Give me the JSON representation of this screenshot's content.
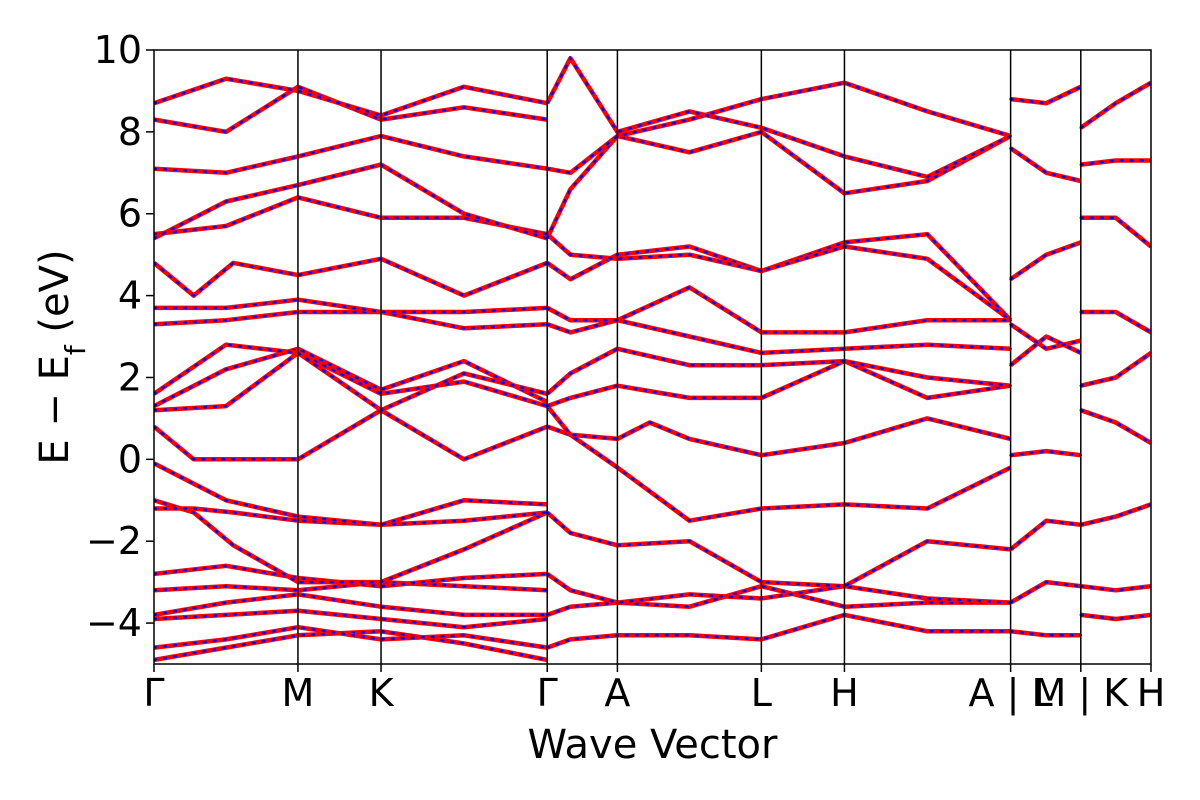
{
  "chart_data": {
    "type": "line",
    "title": "",
    "xlabel": "Wave Vector",
    "ylabel": {
      "main": "E − E",
      "sub": "f",
      "unit": " (eV)"
    },
    "ylim": [
      -5,
      10
    ],
    "yticks": [
      -4,
      -2,
      0,
      2,
      4,
      6,
      8,
      10
    ],
    "ytick_labels": [
      "−4",
      "−2",
      "0",
      "2",
      "4",
      "6",
      "8",
      "10"
    ],
    "kpath": [
      {
        "label": "Γ",
        "x": 0.0
      },
      {
        "label": "M",
        "x": 0.726
      },
      {
        "label": "K",
        "x": 1.145
      },
      {
        "label": "Γ",
        "x": 1.983
      },
      {
        "label": "A",
        "x": 2.337
      },
      {
        "label": "L",
        "x": 3.063
      },
      {
        "label": "H",
        "x": 3.482
      },
      {
        "label": "A | L",
        "x": 4.32
      },
      {
        "label": "M | K",
        "x": 4.674
      },
      {
        "label": "H",
        "x": 5.028
      }
    ],
    "xlim": [
      0.0,
      5.028
    ],
    "series_colors": {
      "reference": "#0000ff",
      "overlay": "#ff0000"
    },
    "bands": [
      {
        "x": [
          0,
          0.363,
          0.726,
          1.145,
          1.563,
          1.983
        ],
        "y": [
          -4.9,
          -4.6,
          -4.3,
          -4.2,
          -4.5,
          -4.9
        ]
      },
      {
        "x": [
          0,
          0.363,
          0.726,
          1.145,
          1.563,
          1.983
        ],
        "y": [
          -4.6,
          -4.4,
          -4.1,
          -4.4,
          -4.3,
          -4.6
        ]
      },
      {
        "x": [
          0,
          0.363,
          0.726,
          1.145,
          1.563,
          1.983
        ],
        "y": [
          -3.9,
          -3.8,
          -3.7,
          -3.9,
          -4.1,
          -3.9
        ]
      },
      {
        "x": [
          0,
          0.363,
          0.726,
          1.145,
          1.563,
          1.983
        ],
        "y": [
          -3.8,
          -3.5,
          -3.3,
          -3.6,
          -3.8,
          -3.8
        ]
      },
      {
        "x": [
          0,
          0.363,
          0.726,
          1.145,
          1.563,
          1.983
        ],
        "y": [
          -3.2,
          -3.1,
          -3.2,
          -3.0,
          -3.1,
          -3.2
        ]
      },
      {
        "x": [
          0,
          0.363,
          0.726,
          1.145,
          1.563,
          1.983
        ],
        "y": [
          -2.8,
          -2.6,
          -2.9,
          -3.1,
          -2.9,
          -2.8
        ]
      },
      {
        "x": [
          0,
          0.2,
          0.4,
          0.726,
          1.145,
          1.563,
          1.983
        ],
        "y": [
          -1.0,
          -1.3,
          -2.1,
          -3.0,
          -3.0,
          -2.2,
          -1.3
        ]
      },
      {
        "x": [
          0,
          0.2,
          0.4,
          0.726,
          1.145,
          1.563,
          1.983
        ],
        "y": [
          -1.2,
          -1.2,
          -1.3,
          -1.5,
          -1.6,
          -1.5,
          -1.3
        ]
      },
      {
        "x": [
          0,
          0.363,
          0.726,
          1.145,
          1.563,
          1.983
        ],
        "y": [
          -0.1,
          -1.0,
          -1.4,
          -1.6,
          -1.0,
          -1.1
        ]
      },
      {
        "x": [
          0,
          0.2,
          0.726,
          1.145,
          1.563,
          1.983
        ],
        "y": [
          0.8,
          0.0,
          0.0,
          1.2,
          0.0,
          0.8
        ]
      },
      {
        "x": [
          0,
          0.363,
          0.726,
          1.145,
          1.563,
          1.983
        ],
        "y": [
          1.2,
          1.3,
          2.6,
          1.6,
          1.9,
          1.3
        ]
      },
      {
        "x": [
          0,
          0.363,
          0.726,
          1.145,
          1.563,
          1.983
        ],
        "y": [
          1.3,
          2.2,
          2.7,
          1.7,
          2.4,
          1.4
        ]
      },
      {
        "x": [
          0,
          0.363,
          0.726,
          1.145,
          1.563,
          1.983
        ],
        "y": [
          1.6,
          2.8,
          2.6,
          1.2,
          2.1,
          1.6
        ]
      },
      {
        "x": [
          0,
          0.363,
          0.726,
          1.145,
          1.563,
          1.983
        ],
        "y": [
          3.3,
          3.4,
          3.6,
          3.6,
          3.2,
          3.3
        ]
      },
      {
        "x": [
          0,
          0.363,
          0.726,
          1.145,
          1.563,
          1.983
        ],
        "y": [
          3.7,
          3.7,
          3.9,
          3.6,
          3.6,
          3.7
        ]
      },
      {
        "x": [
          0,
          0.2,
          0.4,
          0.726,
          1.145,
          1.563,
          1.983
        ],
        "y": [
          4.8,
          4.0,
          4.8,
          4.5,
          4.9,
          4.0,
          4.8
        ]
      },
      {
        "x": [
          0,
          0.363,
          0.726,
          1.145,
          1.563,
          1.983
        ],
        "y": [
          5.5,
          5.7,
          6.4,
          5.9,
          5.9,
          5.5
        ]
      },
      {
        "x": [
          0,
          0.363,
          0.726,
          1.145,
          1.563,
          1.983
        ],
        "y": [
          5.4,
          6.3,
          6.7,
          7.2,
          6.0,
          5.4
        ]
      },
      {
        "x": [
          0,
          0.363,
          0.726,
          1.145,
          1.563,
          1.983
        ],
        "y": [
          7.1,
          7.0,
          7.4,
          7.9,
          7.4,
          7.1
        ]
      },
      {
        "x": [
          0,
          0.363,
          0.726,
          1.145,
          1.563,
          1.983
        ],
        "y": [
          8.3,
          8.0,
          9.1,
          8.3,
          8.6,
          8.3
        ]
      },
      {
        "x": [
          0,
          0.363,
          0.726,
          1.145,
          1.563,
          1.983
        ],
        "y": [
          8.7,
          9.3,
          9.0,
          8.4,
          9.1,
          8.7
        ]
      },
      {
        "x": [
          1.983,
          2.1,
          2.337,
          2.7,
          3.063,
          3.482,
          3.9,
          4.32
        ],
        "y": [
          -3.8,
          -3.6,
          -3.5,
          -3.6,
          -3.1,
          -3.6,
          -3.5,
          -3.5
        ]
      },
      {
        "x": [
          1.983,
          2.1,
          2.337,
          2.7,
          3.063,
          3.482,
          3.9,
          4.32
        ],
        "y": [
          -4.6,
          -4.4,
          -4.3,
          -4.3,
          -4.4,
          -3.8,
          -4.2,
          -4.2
        ]
      },
      {
        "x": [
          1.983,
          2.1,
          2.337,
          2.7,
          3.063,
          3.482,
          3.9,
          4.32
        ],
        "y": [
          -2.8,
          -3.2,
          -3.5,
          -3.3,
          -3.4,
          -3.1,
          -3.4,
          -3.5
        ]
      },
      {
        "x": [
          1.983,
          2.1,
          2.337,
          2.7,
          3.063,
          3.482,
          3.9,
          4.32
        ],
        "y": [
          -1.3,
          -1.8,
          -2.1,
          -2.0,
          -3.0,
          -3.1,
          -2.0,
          -2.2
        ]
      },
      {
        "x": [
          1.983,
          2.1,
          2.337,
          2.7,
          3.063,
          3.482,
          3.9,
          4.32
        ],
        "y": [
          0.8,
          0.6,
          -0.2,
          -1.5,
          -1.2,
          -1.1,
          -1.2,
          -0.2
        ]
      },
      {
        "x": [
          1.983,
          2.1,
          2.337,
          2.5,
          2.7,
          3.063,
          3.482,
          3.9,
          4.32
        ],
        "y": [
          1.3,
          0.6,
          0.5,
          0.9,
          0.5,
          0.1,
          0.4,
          1.0,
          0.5
        ]
      },
      {
        "x": [
          1.983,
          2.1,
          2.337,
          2.7,
          3.063,
          3.482,
          3.9,
          4.32
        ],
        "y": [
          1.3,
          1.5,
          1.8,
          1.5,
          1.5,
          2.4,
          1.5,
          1.8
        ]
      },
      {
        "x": [
          1.983,
          2.1,
          2.337,
          2.7,
          3.063,
          3.482,
          3.9,
          4.32
        ],
        "y": [
          1.6,
          2.1,
          2.7,
          2.3,
          2.3,
          2.4,
          2.0,
          1.8
        ]
      },
      {
        "x": [
          1.983,
          2.1,
          2.337,
          2.7,
          3.063,
          3.482,
          3.9,
          4.32
        ],
        "y": [
          3.3,
          3.1,
          3.4,
          3.0,
          2.6,
          2.7,
          2.8,
          2.7
        ]
      },
      {
        "x": [
          1.983,
          2.1,
          2.337,
          2.7,
          3.063,
          3.482,
          3.9,
          4.32
        ],
        "y": [
          3.7,
          3.4,
          3.4,
          4.2,
          3.1,
          3.1,
          3.4,
          3.4
        ]
      },
      {
        "x": [
          1.983,
          2.1,
          2.337,
          2.7,
          3.063,
          3.482,
          3.9,
          4.32
        ],
        "y": [
          4.8,
          4.4,
          5.0,
          5.2,
          4.6,
          5.3,
          5.5,
          3.4
        ]
      },
      {
        "x": [
          1.983,
          2.1,
          2.337,
          2.7,
          3.063,
          3.482,
          3.9,
          4.32
        ],
        "y": [
          5.5,
          5.0,
          4.9,
          5.0,
          4.6,
          5.2,
          4.9,
          3.4
        ]
      },
      {
        "x": [
          1.983,
          2.1,
          2.337,
          2.7,
          3.063,
          3.482,
          3.9,
          4.32
        ],
        "y": [
          5.4,
          6.6,
          7.9,
          7.5,
          8.0,
          6.5,
          6.8,
          7.9
        ]
      },
      {
        "x": [
          1.983,
          2.1,
          2.337,
          2.7,
          3.063,
          3.482,
          3.9,
          4.32
        ],
        "y": [
          7.1,
          7.0,
          7.9,
          8.3,
          8.8,
          9.2,
          8.5,
          7.9
        ]
      },
      {
        "x": [
          1.983,
          2.1,
          2.337,
          2.7,
          3.063,
          3.482,
          3.9,
          4.32
        ],
        "y": [
          8.7,
          9.8,
          8.0,
          8.5,
          8.1,
          7.4,
          6.9,
          7.9
        ]
      },
      {
        "x": [
          4.32,
          4.5,
          4.674
        ],
        "y": [
          -3.5,
          -3.0,
          -3.1
        ]
      },
      {
        "x": [
          4.32,
          4.5,
          4.674
        ],
        "y": [
          -4.2,
          -4.3,
          -4.3
        ]
      },
      {
        "x": [
          4.32,
          4.5,
          4.674
        ],
        "y": [
          -2.2,
          -1.5,
          -1.6
        ]
      },
      {
        "x": [
          4.32,
          4.5,
          4.674
        ],
        "y": [
          0.1,
          0.2,
          0.1
        ]
      },
      {
        "x": [
          4.32,
          4.5,
          4.674
        ],
        "y": [
          2.3,
          3.0,
          2.6
        ]
      },
      {
        "x": [
          4.32,
          4.5,
          4.674
        ],
        "y": [
          3.3,
          2.7,
          2.9
        ]
      },
      {
        "x": [
          4.32,
          4.5,
          4.674
        ],
        "y": [
          4.4,
          5.0,
          5.3
        ]
      },
      {
        "x": [
          4.32,
          4.5,
          4.674
        ],
        "y": [
          7.6,
          7.0,
          6.8
        ]
      },
      {
        "x": [
          4.32,
          4.5,
          4.674
        ],
        "y": [
          8.8,
          8.7,
          9.1
        ]
      },
      {
        "x": [
          4.674,
          4.85,
          5.028
        ],
        "y": [
          -1.6,
          -1.4,
          -1.1
        ]
      },
      {
        "x": [
          4.674,
          4.85,
          5.028
        ],
        "y": [
          -3.1,
          -3.2,
          -3.1
        ]
      },
      {
        "x": [
          4.674,
          4.85,
          5.028
        ],
        "y": [
          -3.8,
          -3.9,
          -3.8
        ]
      },
      {
        "x": [
          4.674,
          4.85,
          5.028
        ],
        "y": [
          1.2,
          0.9,
          0.4
        ]
      },
      {
        "x": [
          4.674,
          4.85,
          5.028
        ],
        "y": [
          1.8,
          2.0,
          2.6
        ]
      },
      {
        "x": [
          4.674,
          4.85,
          5.028
        ],
        "y": [
          3.6,
          3.6,
          3.1
        ]
      },
      {
        "x": [
          4.674,
          4.85,
          5.028
        ],
        "y": [
          5.9,
          5.9,
          5.2
        ]
      },
      {
        "x": [
          4.674,
          4.85,
          5.028
        ],
        "y": [
          7.2,
          7.3,
          7.3
        ]
      },
      {
        "x": [
          4.674,
          4.85,
          5.028
        ],
        "y": [
          8.1,
          8.7,
          9.2
        ]
      }
    ]
  }
}
